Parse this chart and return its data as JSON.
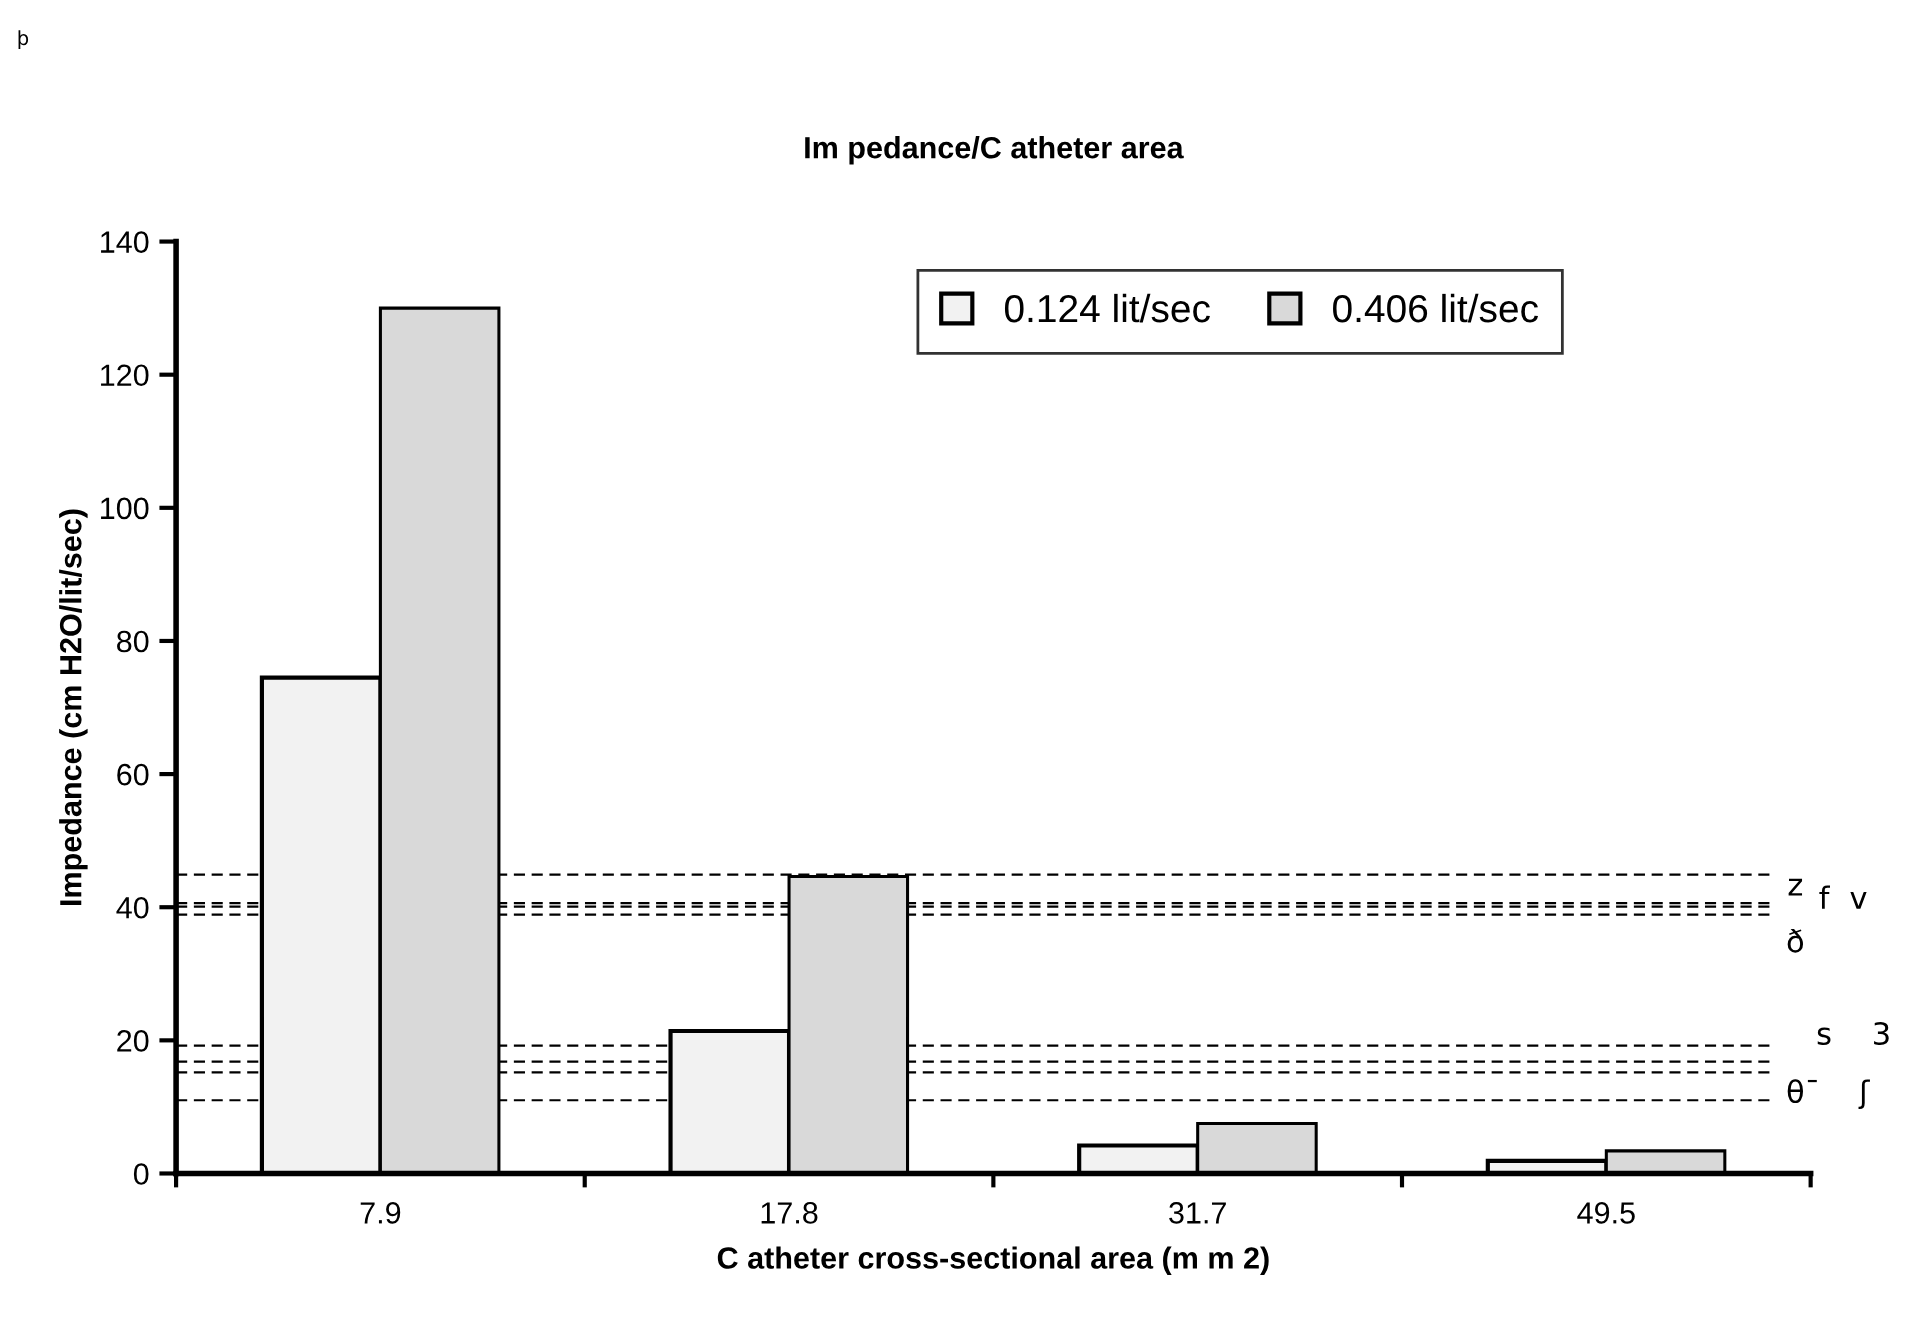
{
  "chart_data": {
    "type": "bar",
    "title": "Im pedance/C atheter area",
    "xlabel": "C atheter cross-sectional area (m m 2)",
    "ylabel": "Impedance (cm H2O/lit/sec)",
    "categories": [
      "7.9",
      "17.8",
      "31.7",
      "49.5"
    ],
    "series": [
      {
        "name": "0.124 lit/sec",
        "color": "#f2f2f2",
        "values": [
          74.5,
          21.4,
          4.2,
          1.9
        ]
      },
      {
        "name": "0.406 lit/sec",
        "color": "#d9d9d9",
        "values": [
          130,
          44.6,
          7.5,
          3.4
        ]
      }
    ],
    "ylim": [
      0,
      140
    ],
    "yticks": [
      0,
      20,
      40,
      60,
      80,
      100,
      120,
      140
    ],
    "ref_lines": [
      {
        "axis": "y",
        "value": 44.9,
        "color": "#000000",
        "line_style": "dashed"
      },
      {
        "axis": "y",
        "value": 40.6,
        "color": "#000000",
        "line_style": "dashed"
      },
      {
        "axis": "y",
        "value": 40.1,
        "color": "#000000",
        "line_style": "dashed"
      },
      {
        "axis": "y",
        "value": 38.9,
        "color": "#000000",
        "line_style": "dashed"
      },
      {
        "axis": "y",
        "value": 19.2,
        "color": "#000000",
        "line_style": "dashed"
      },
      {
        "axis": "y",
        "value": 16.8,
        "color": "#000000",
        "line_style": "dashed"
      },
      {
        "axis": "y",
        "value": 15.2,
        "color": "#000000",
        "line_style": "dashed"
      },
      {
        "axis": "y",
        "value": 11.0,
        "color": "#000000",
        "line_style": "dashed"
      }
    ],
    "annotations": [
      "z",
      "f",
      "v",
      "ð",
      "s",
      "3",
      "θ¯",
      "ʃ",
      "þ"
    ],
    "legend": "top right",
    "grid": false
  }
}
